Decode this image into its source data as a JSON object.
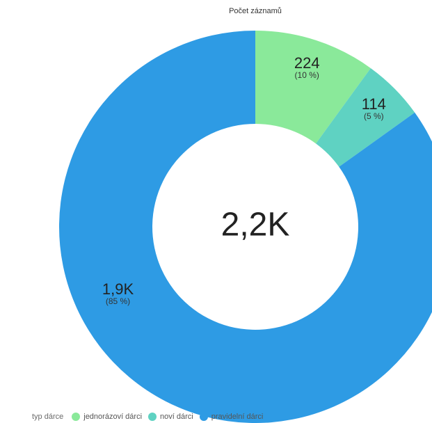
{
  "chart_data": {
    "type": "pie",
    "title": "Počet záznamů",
    "center_label": "2,2K",
    "legend_title": "typ dárce",
    "legend_placement": "bottom-left",
    "slices": [
      {
        "name": "jednorázoví dárci",
        "value": 224,
        "value_label": "224",
        "percent_label": "(10 %)",
        "color": "#8ae99a"
      },
      {
        "name": "noví dárci",
        "value": 114,
        "value_label": "114",
        "percent_label": "(5 %)",
        "color": "#5fd2c2"
      },
      {
        "name": "pravidelní dárci",
        "value": 1900,
        "value_label": "1,9K",
        "percent_label": "(85 %)",
        "color": "#2e9be4"
      }
    ]
  }
}
